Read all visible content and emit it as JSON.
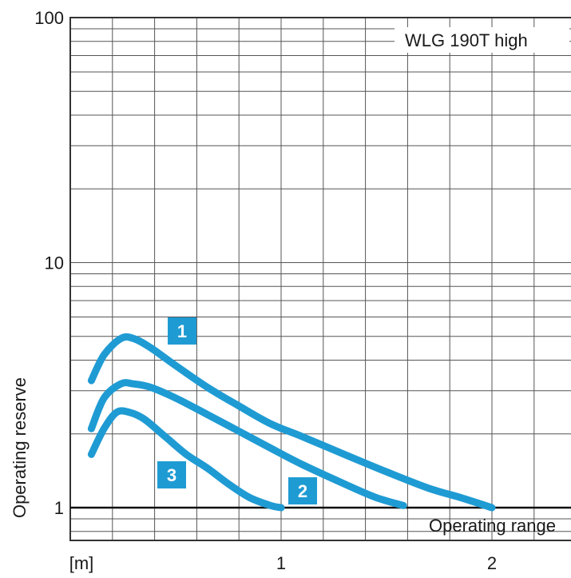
{
  "chart_data": {
    "type": "line",
    "title": "WLG 190T  high",
    "ylabel": "Operating reserve",
    "xunit_label": "[m]",
    "reference_line_label": "Operating range",
    "y_scale": "log",
    "ylim": [
      0.7,
      100
    ],
    "xlim": [
      -0.03,
      2.4
    ],
    "x_ticks": [
      "1",
      "2"
    ],
    "y_ticks": [
      "100",
      "10",
      "1"
    ],
    "grid": true,
    "series_color": "#1f9bd3",
    "badge_color": "#1f9bd3",
    "series": [
      {
        "name": "1",
        "x": [
          0.1,
          0.16,
          0.24,
          0.3,
          0.38,
          0.5,
          0.65,
          0.8,
          0.95,
          1.1,
          1.3,
          1.5,
          1.7,
          1.85,
          2.0
        ],
        "y": [
          3.3,
          4.2,
          4.9,
          4.9,
          4.5,
          3.8,
          3.1,
          2.6,
          2.2,
          1.95,
          1.65,
          1.4,
          1.2,
          1.1,
          1.0
        ]
      },
      {
        "name": "2",
        "x": [
          0.1,
          0.16,
          0.24,
          0.3,
          0.38,
          0.5,
          0.65,
          0.8,
          0.95,
          1.1,
          1.3,
          1.45,
          1.58
        ],
        "y": [
          2.1,
          2.8,
          3.2,
          3.2,
          3.1,
          2.8,
          2.4,
          2.05,
          1.75,
          1.5,
          1.25,
          1.1,
          1.02
        ]
      },
      {
        "name": "3",
        "x": [
          0.1,
          0.16,
          0.22,
          0.28,
          0.35,
          0.45,
          0.55,
          0.65,
          0.75,
          0.85,
          0.95,
          1.0
        ],
        "y": [
          1.65,
          2.1,
          2.45,
          2.45,
          2.3,
          1.95,
          1.65,
          1.45,
          1.25,
          1.1,
          1.02,
          1.0
        ]
      }
    ],
    "reference_line_y": 1
  }
}
